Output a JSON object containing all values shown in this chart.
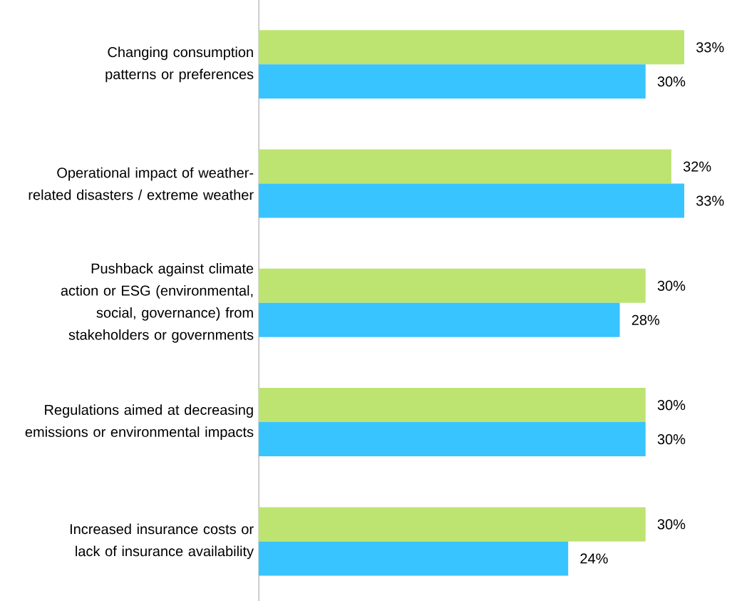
{
  "chart_data": {
    "type": "bar",
    "orientation": "horizontal",
    "categories": [
      "Changing consumption patterns or preferences",
      "Operational impact of weather-related disasters / extreme weather",
      "Pushback against climate action or ESG (environmental, social, governance) from stakeholders or governments",
      "Regulations aimed at decreasing emissions or environmental impacts",
      "Increased insurance costs or lack of insurance availability"
    ],
    "series": [
      {
        "color": "#bde471",
        "values": [
          33,
          32,
          30,
          30,
          30
        ],
        "value_labels": [
          "33%",
          "32%",
          "30%",
          "30%",
          "30%"
        ]
      },
      {
        "color": "#38c4ff",
        "values": [
          30,
          33,
          28,
          30,
          24
        ],
        "value_labels": [
          "30%",
          "33%",
          "28%",
          "30%",
          "24%"
        ]
      }
    ]
  }
}
